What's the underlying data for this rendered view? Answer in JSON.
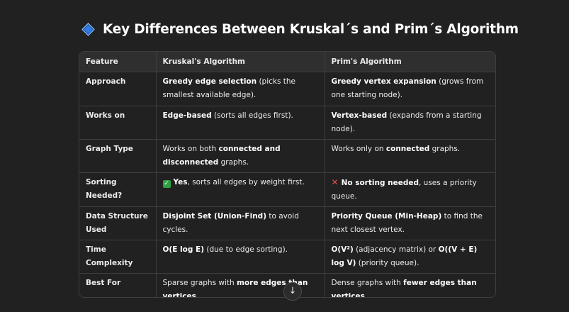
{
  "heading": "Key Differences Between Kruskal´s and Prim´s Algorithm",
  "table": {
    "headers": [
      "Feature",
      "Kruskal's Algorithm",
      "Prim's Algorithm"
    ],
    "rows": [
      {
        "feature": "Approach",
        "kruskal_b": "Greedy edge selection",
        "kruskal_t": " (picks the smallest available edge).",
        "prim_b": "Greedy vertex expansion",
        "prim_t": " (grows from one starting node)."
      },
      {
        "feature": "Works on",
        "kruskal_b": "Edge-based",
        "kruskal_t": " (sorts all edges first).",
        "prim_b": "Vertex-based",
        "prim_t": " (expands from a starting node)."
      },
      {
        "feature": "Graph Type",
        "kruskal_t1": "Works on both ",
        "kruskal_b1": "connected",
        "kruskal_t2": " and ",
        "kruskal_b2": "disconnected",
        "kruskal_t3": " graphs.",
        "prim_t1": "Works only on ",
        "prim_b1": "connected",
        "prim_t2": " graphs."
      },
      {
        "feature": "Sorting Needed?",
        "kruskal_b": "Yes",
        "kruskal_t": ", sorts all edges by weight first.",
        "prim_b": "No sorting needed",
        "prim_t": ", uses a priority queue."
      },
      {
        "feature": "Data Structure Used",
        "kruskal_b": "Disjoint Set (Union-Find)",
        "kruskal_t": " to avoid cycles.",
        "prim_b": "Priority Queue (Min-Heap)",
        "prim_t": " to find the next closest vertex."
      },
      {
        "feature": "Time Complexity",
        "kruskal_b": "O(E log E)",
        "kruskal_t": " (due to edge sorting).",
        "prim_b1": "O(V²)",
        "prim_t1": " (adjacency matrix) or ",
        "prim_b2": "O((V + E) log V)",
        "prim_t2": " (priority queue)."
      },
      {
        "feature": "Best For",
        "kruskal_t1": "Sparse graphs with ",
        "kruskal_b1": "more edges than vertices",
        "kruskal_t2": ".",
        "prim_t1": "Dense graphs with ",
        "prim_b1": "fewer edges than vertices",
        "prim_t2": "."
      }
    ]
  },
  "icons": {
    "heading_icon": "blue-diamond-icon",
    "check": "green-check-icon",
    "cross": "red-x-icon",
    "scroll": "arrow-down-icon"
  },
  "glyphs": {
    "check": "✓",
    "cross": "✕",
    "scroll": "↓"
  },
  "colors": {
    "background": "#212121",
    "header_bg": "#2f2f2f",
    "border": "#3e3e3e",
    "accent": "#2f7be0",
    "check": "#2ea043",
    "cross": "#e5484d"
  }
}
